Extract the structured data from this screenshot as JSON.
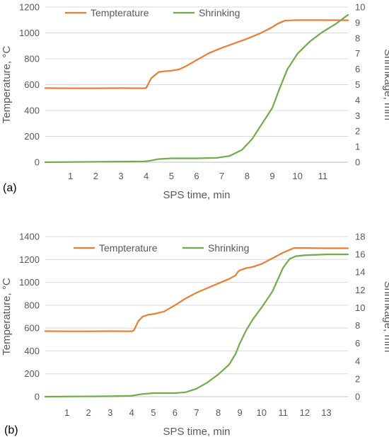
{
  "chart_data": [
    {
      "panel_label": "(a)",
      "type": "line",
      "xlabel": "SPS time, min",
      "ylabel": "Temperature, °C",
      "ylabel_right": "Shrinkage, mm",
      "x_ticks": [
        "1",
        "2",
        "3",
        "4",
        "5",
        "6",
        "7",
        "8",
        "9",
        "10",
        "11"
      ],
      "xlim": [
        0,
        12
      ],
      "ylim": [
        0,
        1200
      ],
      "y_ticks": [
        "0",
        "200",
        "400",
        "600",
        "800",
        "1000",
        "1200"
      ],
      "ylim_right": [
        0,
        10
      ],
      "y_ticks_right": [
        "0",
        "1",
        "2",
        "3",
        "4",
        "5",
        "6",
        "7",
        "8",
        "9",
        "10"
      ],
      "grid": true,
      "legend": "top",
      "series": [
        {
          "name": "Tempterature",
          "axis": "left",
          "color": "#ED7D31",
          "points": [
            [
              0,
              573
            ],
            [
              1,
              572
            ],
            [
              2,
              572
            ],
            [
              3,
              573
            ],
            [
              3.9,
              572
            ],
            [
              4.0,
              575
            ],
            [
              4.2,
              650
            ],
            [
              4.5,
              698
            ],
            [
              4.8,
              705
            ],
            [
              5,
              708
            ],
            [
              5.3,
              718
            ],
            [
              5.6,
              745
            ],
            [
              6,
              790
            ],
            [
              6.5,
              845
            ],
            [
              7,
              885
            ],
            [
              7.5,
              920
            ],
            [
              8,
              955
            ],
            [
              8.5,
              995
            ],
            [
              9,
              1045
            ],
            [
              9.2,
              1070
            ],
            [
              9.5,
              1095
            ],
            [
              10,
              1100
            ],
            [
              11,
              1099
            ],
            [
              12,
              1098
            ]
          ]
        },
        {
          "name": "Shrinking",
          "axis": "right",
          "color": "#70AD47",
          "points": [
            [
              0,
              0
            ],
            [
              3.9,
              0.05
            ],
            [
              4.1,
              0.08
            ],
            [
              4.5,
              0.2
            ],
            [
              5,
              0.25
            ],
            [
              6,
              0.25
            ],
            [
              6.8,
              0.28
            ],
            [
              7.3,
              0.4
            ],
            [
              7.8,
              0.8
            ],
            [
              8.2,
              1.5
            ],
            [
              8.6,
              2.5
            ],
            [
              9,
              3.5
            ],
            [
              9.3,
              4.8
            ],
            [
              9.6,
              6.0
            ],
            [
              10,
              7.0
            ],
            [
              10.5,
              7.8
            ],
            [
              11,
              8.4
            ],
            [
              11.5,
              8.9
            ],
            [
              12,
              9.5
            ]
          ]
        }
      ]
    },
    {
      "panel_label": "(b)",
      "type": "line",
      "xlabel": "SPS time, min",
      "ylabel": "Temperature, °C",
      "ylabel_right": "Shrinkage, mm",
      "x_ticks": [
        "1",
        "2",
        "3",
        "4",
        "5",
        "6",
        "7",
        "8",
        "9",
        "10",
        "11",
        "12",
        "13"
      ],
      "xlim": [
        0,
        14
      ],
      "ylim": [
        0,
        1400
      ],
      "y_ticks": [
        "0",
        "200",
        "400",
        "600",
        "800",
        "1000",
        "1200",
        "1400"
      ],
      "ylim_right": [
        0,
        18
      ],
      "y_ticks_right": [
        "0",
        "2",
        "4",
        "6",
        "8",
        "10",
        "12",
        "14",
        "16",
        "18"
      ],
      "grid": true,
      "legend": "top",
      "series": [
        {
          "name": "Tempterature",
          "axis": "left",
          "color": "#ED7D31",
          "points": [
            [
              0,
              573
            ],
            [
              1,
              572
            ],
            [
              2,
              572
            ],
            [
              3,
              573
            ],
            [
              4,
              572
            ],
            [
              4.1,
              580
            ],
            [
              4.3,
              660
            ],
            [
              4.5,
              700
            ],
            [
              4.8,
              718
            ],
            [
              5,
              722
            ],
            [
              5.5,
              745
            ],
            [
              6,
              800
            ],
            [
              6.5,
              860
            ],
            [
              7,
              910
            ],
            [
              7.5,
              950
            ],
            [
              8,
              990
            ],
            [
              8.5,
              1030
            ],
            [
              8.8,
              1060
            ],
            [
              8.9,
              1090
            ],
            [
              9,
              1105
            ],
            [
              9.3,
              1125
            ],
            [
              9.6,
              1135
            ],
            [
              10,
              1160
            ],
            [
              10.5,
              1210
            ],
            [
              11,
              1260
            ],
            [
              11.5,
              1300
            ],
            [
              12,
              1300
            ],
            [
              13,
              1298
            ],
            [
              14,
              1298
            ]
          ]
        },
        {
          "name": "Shrinking",
          "axis": "right",
          "color": "#70AD47",
          "points": [
            [
              0,
              0
            ],
            [
              3,
              0.05
            ],
            [
              4,
              0.1
            ],
            [
              4.5,
              0.3
            ],
            [
              5,
              0.4
            ],
            [
              6,
              0.4
            ],
            [
              6.5,
              0.5
            ],
            [
              7,
              0.9
            ],
            [
              7.5,
              1.6
            ],
            [
              8,
              2.5
            ],
            [
              8.5,
              3.6
            ],
            [
              8.8,
              4.8
            ],
            [
              9,
              6.0
            ],
            [
              9.3,
              7.5
            ],
            [
              9.6,
              8.7
            ],
            [
              10,
              10
            ],
            [
              10.5,
              11.8
            ],
            [
              11,
              14.5
            ],
            [
              11.3,
              15.5
            ],
            [
              11.6,
              15.8
            ],
            [
              12,
              15.9
            ],
            [
              13,
              16.0
            ],
            [
              14,
              16.0
            ]
          ]
        }
      ]
    }
  ]
}
